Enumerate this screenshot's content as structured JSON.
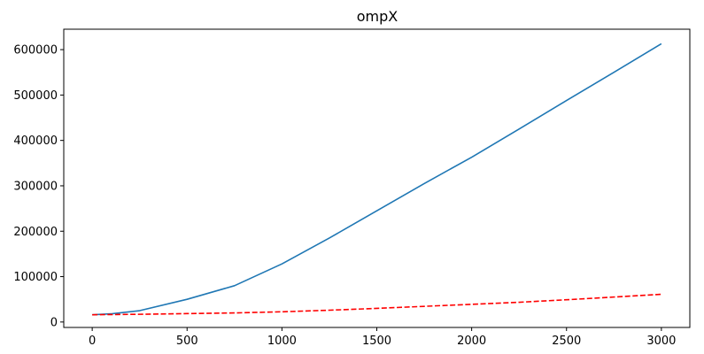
{
  "chart_data": {
    "type": "line",
    "title": "ompX",
    "xlabel": "",
    "ylabel": "",
    "xlim": [
      -150,
      3150
    ],
    "ylim": [
      -12000,
      645000
    ],
    "xticks": [
      0,
      500,
      1000,
      1500,
      2000,
      2500,
      3000
    ],
    "yticks": [
      0,
      100000,
      200000,
      300000,
      400000,
      500000,
      600000
    ],
    "grid": false,
    "legend": "none",
    "series": [
      {
        "color": "#1f77b4",
        "style": "solid",
        "x": [
          0,
          100,
          250,
          500,
          750,
          1000,
          1250,
          1500,
          1750,
          2000,
          2250,
          2500,
          2750,
          3000
        ],
        "y": [
          16000,
          18000,
          25000,
          50000,
          80000,
          128000,
          185000,
          245000,
          305000,
          363000,
          425000,
          488000,
          550000,
          613000
        ]
      },
      {
        "color": "#ff0000",
        "style": "dashed",
        "x": [
          0,
          250,
          500,
          750,
          1000,
          1250,
          1500,
          1750,
          2000,
          2250,
          2500,
          2750,
          3000
        ],
        "y": [
          16000,
          17000,
          18500,
          20000,
          22500,
          26000,
          30000,
          34500,
          39000,
          43500,
          49000,
          55000,
          61000
        ]
      }
    ]
  }
}
